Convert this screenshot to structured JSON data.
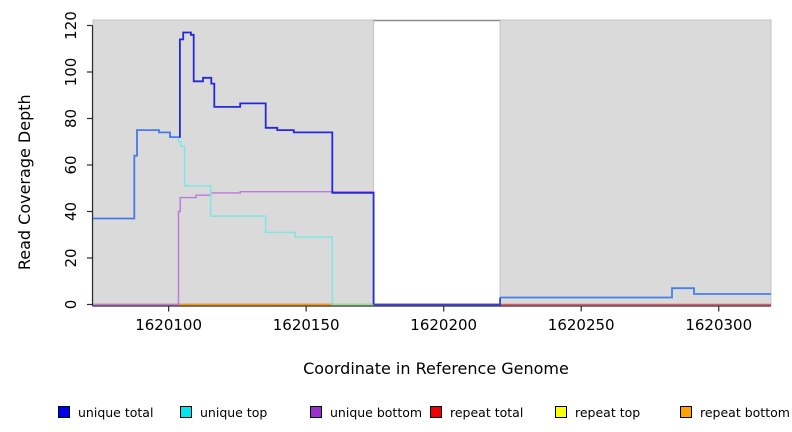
{
  "chart_data": {
    "type": "line",
    "subtype": "step-coverage-plot",
    "title": "",
    "xlabel": "Coordinate in Reference Genome",
    "ylabel": "Read Coverage Depth",
    "xlim": [
      1620072.5,
      1620319
    ],
    "ylim": [
      0,
      122.5
    ],
    "x_ticks": [
      1620100,
      1620150,
      1620200,
      1620250,
      1620300
    ],
    "y_ticks": [
      0,
      20,
      40,
      60,
      80,
      100,
      120
    ],
    "grid": false,
    "legend_position": "bottom",
    "background_regions": [
      {
        "x1": 1620072.5,
        "x2": 1620174.5,
        "color": "#dadada",
        "border": "#c4c4c4"
      },
      {
        "x1": 1620220.5,
        "x2": 1620319.0,
        "color": "#dadada",
        "border": "#c4c4c4"
      }
    ],
    "gap_region": {
      "x1": 1620174.5,
      "x2": 1620220.5,
      "top_border_color": "#8c8c8c"
    },
    "series": [
      {
        "name": "unique total",
        "legend_color": "#0000f0",
        "x_end": 1620319,
        "steps": [
          [
            1620072.5,
            37
          ],
          [
            1620087.5,
            64
          ],
          [
            1620088.5,
            75
          ],
          [
            1620096.5,
            74
          ],
          [
            1620100.5,
            72
          ],
          [
            1620104.1,
            114
          ],
          [
            1620105.3,
            117
          ],
          [
            1620108.1,
            116
          ],
          [
            1620109.1,
            96
          ],
          [
            1620112.5,
            97.5
          ],
          [
            1620115.5,
            95
          ],
          [
            1620116.6,
            85
          ],
          [
            1620126,
            86.5
          ],
          [
            1620135.3,
            76
          ],
          [
            1620139.5,
            75
          ],
          [
            1620145.5,
            74
          ],
          [
            1620159.5,
            48
          ],
          [
            1620174.5,
            0
          ],
          [
            1620220.5,
            3
          ],
          [
            1620283,
            7
          ],
          [
            1620291,
            4.5
          ]
        ],
        "draw": {
          "width": 1.8,
          "color_segments": [
            {
              "to": 1620104.05,
              "color": "#4b79e8"
            },
            {
              "to": 1620174.5,
              "color": "#2428de"
            },
            {
              "to": 1620220.5,
              "color": "#3c3ce2"
            },
            {
              "to": 1620319.0,
              "color": "#4780e8"
            }
          ]
        }
      },
      {
        "name": "unique top",
        "legend_color": "#00e6ee",
        "x_end": 1620319,
        "steps": [
          [
            1620072.5,
            37
          ],
          [
            1620087.5,
            64
          ],
          [
            1620088.5,
            75
          ],
          [
            1620096.5,
            74
          ],
          [
            1620100.5,
            72
          ],
          [
            1620103.6,
            70
          ],
          [
            1620104.5,
            68
          ],
          [
            1620105.8,
            51
          ],
          [
            1620115.3,
            38
          ],
          [
            1620135.3,
            31
          ],
          [
            1620146,
            29
          ],
          [
            1620159.5,
            0
          ],
          [
            1620220.5,
            3
          ],
          [
            1620283,
            7
          ],
          [
            1620291,
            4.5
          ]
        ],
        "draw": {
          "width": 1.5,
          "color": "#7fe6e3"
        }
      },
      {
        "name": "unique bottom",
        "legend_color": "#9b30d0",
        "x_end": 1620174.5,
        "steps": [
          [
            1620072.5,
            0
          ],
          [
            1620103.6,
            40
          ],
          [
            1620104.2,
            46
          ],
          [
            1620110,
            47
          ],
          [
            1620115.3,
            48
          ],
          [
            1620126,
            48.5
          ],
          [
            1620174.5,
            0
          ]
        ],
        "draw": {
          "width": 1.4,
          "color": "#bc79db"
        }
      },
      {
        "name": "repeat total",
        "legend_color": "#ee0000",
        "x_end": 1620319,
        "steps": [
          [
            1620072.5,
            0
          ]
        ],
        "draw": {
          "width": 1.5,
          "color": "#e05575"
        }
      },
      {
        "name": "repeat top",
        "legend_color": "#ffff00",
        "x_end": 1620319,
        "steps": [
          [
            1620072.5,
            0
          ]
        ],
        "draw": {
          "width": 1.2,
          "color": "#ffff00"
        }
      },
      {
        "name": "repeat bottom",
        "legend_color": "#ffa200",
        "x_end": 1620174.5,
        "steps": [
          [
            1620103.6,
            0
          ]
        ],
        "draw": {
          "width": 1.6,
          "color": "#ff9800"
        }
      }
    ],
    "overlays": [
      {
        "x1": 1620159.5,
        "x2": 1620174.5,
        "y": 0,
        "color": "#97df9c",
        "width": 1.5
      }
    ],
    "legend": [
      {
        "label": "unique total",
        "color": "#0000f0"
      },
      {
        "label": "unique top",
        "color": "#00e6ee"
      },
      {
        "label": "unique bottom",
        "color": "#9b30d0"
      },
      {
        "label": "repeat total",
        "color": "#ee0000"
      },
      {
        "label": "repeat top",
        "color": "#ffff00"
      },
      {
        "label": "repeat bottom",
        "color": "#ffa200"
      }
    ]
  }
}
